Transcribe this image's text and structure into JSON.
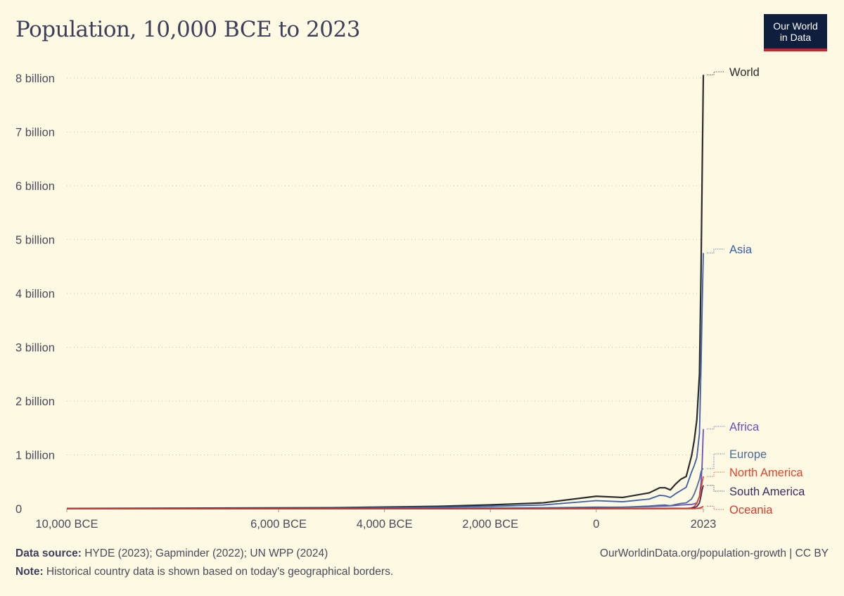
{
  "title": "Population, 10,000 BCE to 2023",
  "logo": {
    "line1": "Our World",
    "line2": "in Data",
    "bg_color": "#0f1e3c",
    "accent_color": "#c4262e"
  },
  "footer": {
    "source_label": "Data source:",
    "source_text": "HYDE (2023); Gapminder (2022); UN WPP (2024)",
    "note_label": "Note:",
    "note_text": "Historical country data is shown based on today's geographical borders.",
    "url": "OurWorldinData.org/population-growth | CC BY"
  },
  "chart_data": {
    "type": "line",
    "title": "Population, 10,000 BCE to 2023",
    "xlim": [
      -10000,
      2023
    ],
    "ylim": [
      0,
      8000000000
    ],
    "grid": "horizontal dotted",
    "legend": "right, labels at line ends",
    "x_ticks": [
      {
        "value": -10000,
        "label": "10,000 BCE"
      },
      {
        "value": -6000,
        "label": "6,000 BCE"
      },
      {
        "value": -4000,
        "label": "4,000 BCE"
      },
      {
        "value": -2000,
        "label": "2,000 BCE"
      },
      {
        "value": 0,
        "label": "0"
      },
      {
        "value": 2023,
        "label": "2023"
      }
    ],
    "y_ticks": [
      {
        "value": 0,
        "label": "0"
      },
      {
        "value": 1000000000,
        "label": "1 billion"
      },
      {
        "value": 2000000000,
        "label": "2 billion"
      },
      {
        "value": 3000000000,
        "label": "3 billion"
      },
      {
        "value": 4000000000,
        "label": "4 billion"
      },
      {
        "value": 5000000000,
        "label": "5 billion"
      },
      {
        "value": 6000000000,
        "label": "6 billion"
      },
      {
        "value": 7000000000,
        "label": "7 billion"
      },
      {
        "value": 8000000000,
        "label": "8 billion"
      }
    ],
    "x": [
      -10000,
      -5000,
      -3000,
      -2000,
      -1000,
      0,
      500,
      1000,
      1200,
      1300,
      1400,
      1500,
      1600,
      1700,
      1800,
      1850,
      1900,
      1950,
      1980,
      2000,
      2023
    ],
    "series": [
      {
        "name": "World",
        "color": "#2b2b2b",
        "values_millions": [
          4.4,
          18,
          45,
          72,
          110,
          232,
          210,
          295,
          390,
          390,
          350,
          460,
          550,
          600,
          980,
          1260,
          1650,
          2500,
          4450,
          6150,
          8060
        ]
      },
      {
        "name": "Asia",
        "color": "#3a5fa8",
        "values_millions": [
          2.5,
          10,
          28,
          45,
          70,
          150,
          130,
          180,
          250,
          240,
          210,
          280,
          340,
          400,
          680,
          800,
          950,
          1400,
          2650,
          3700,
          4750
        ]
      },
      {
        "name": "Africa",
        "color": "#6a4fb8",
        "values_millions": [
          0.5,
          2,
          6,
          10,
          16,
          25,
          30,
          40,
          48,
          50,
          55,
          60,
          70,
          75,
          80,
          90,
          110,
          230,
          480,
          820,
          1480
        ]
      },
      {
        "name": "Europe",
        "color": "#4c6a9c",
        "values_millions": [
          0.6,
          3,
          8,
          12,
          18,
          30,
          28,
          50,
          65,
          70,
          55,
          80,
          100,
          110,
          180,
          270,
          400,
          550,
          690,
          730,
          745
        ]
      },
      {
        "name": "North America",
        "color": "#e0452b",
        "values_millions": [
          0.2,
          0.5,
          1,
          1.2,
          1.5,
          3,
          3,
          3.5,
          4,
          4,
          4,
          4,
          3,
          3,
          15,
          40,
          100,
          230,
          370,
          490,
          600
        ]
      },
      {
        "name": "South America",
        "color": "#3d2a60",
        "values_millions": [
          0.2,
          0.5,
          1,
          1.5,
          2,
          4,
          5,
          6,
          7,
          7,
          8,
          8,
          6,
          6,
          10,
          20,
          40,
          110,
          240,
          350,
          435
        ]
      },
      {
        "name": "Oceania",
        "color": "#d73c2c",
        "values_millions": [
          0.1,
          0.2,
          0.3,
          0.4,
          0.5,
          1,
          1,
          1,
          1,
          1,
          1.5,
          1.5,
          2,
          2,
          2,
          2.5,
          6,
          13,
          23,
          31,
          45
        ]
      }
    ]
  }
}
